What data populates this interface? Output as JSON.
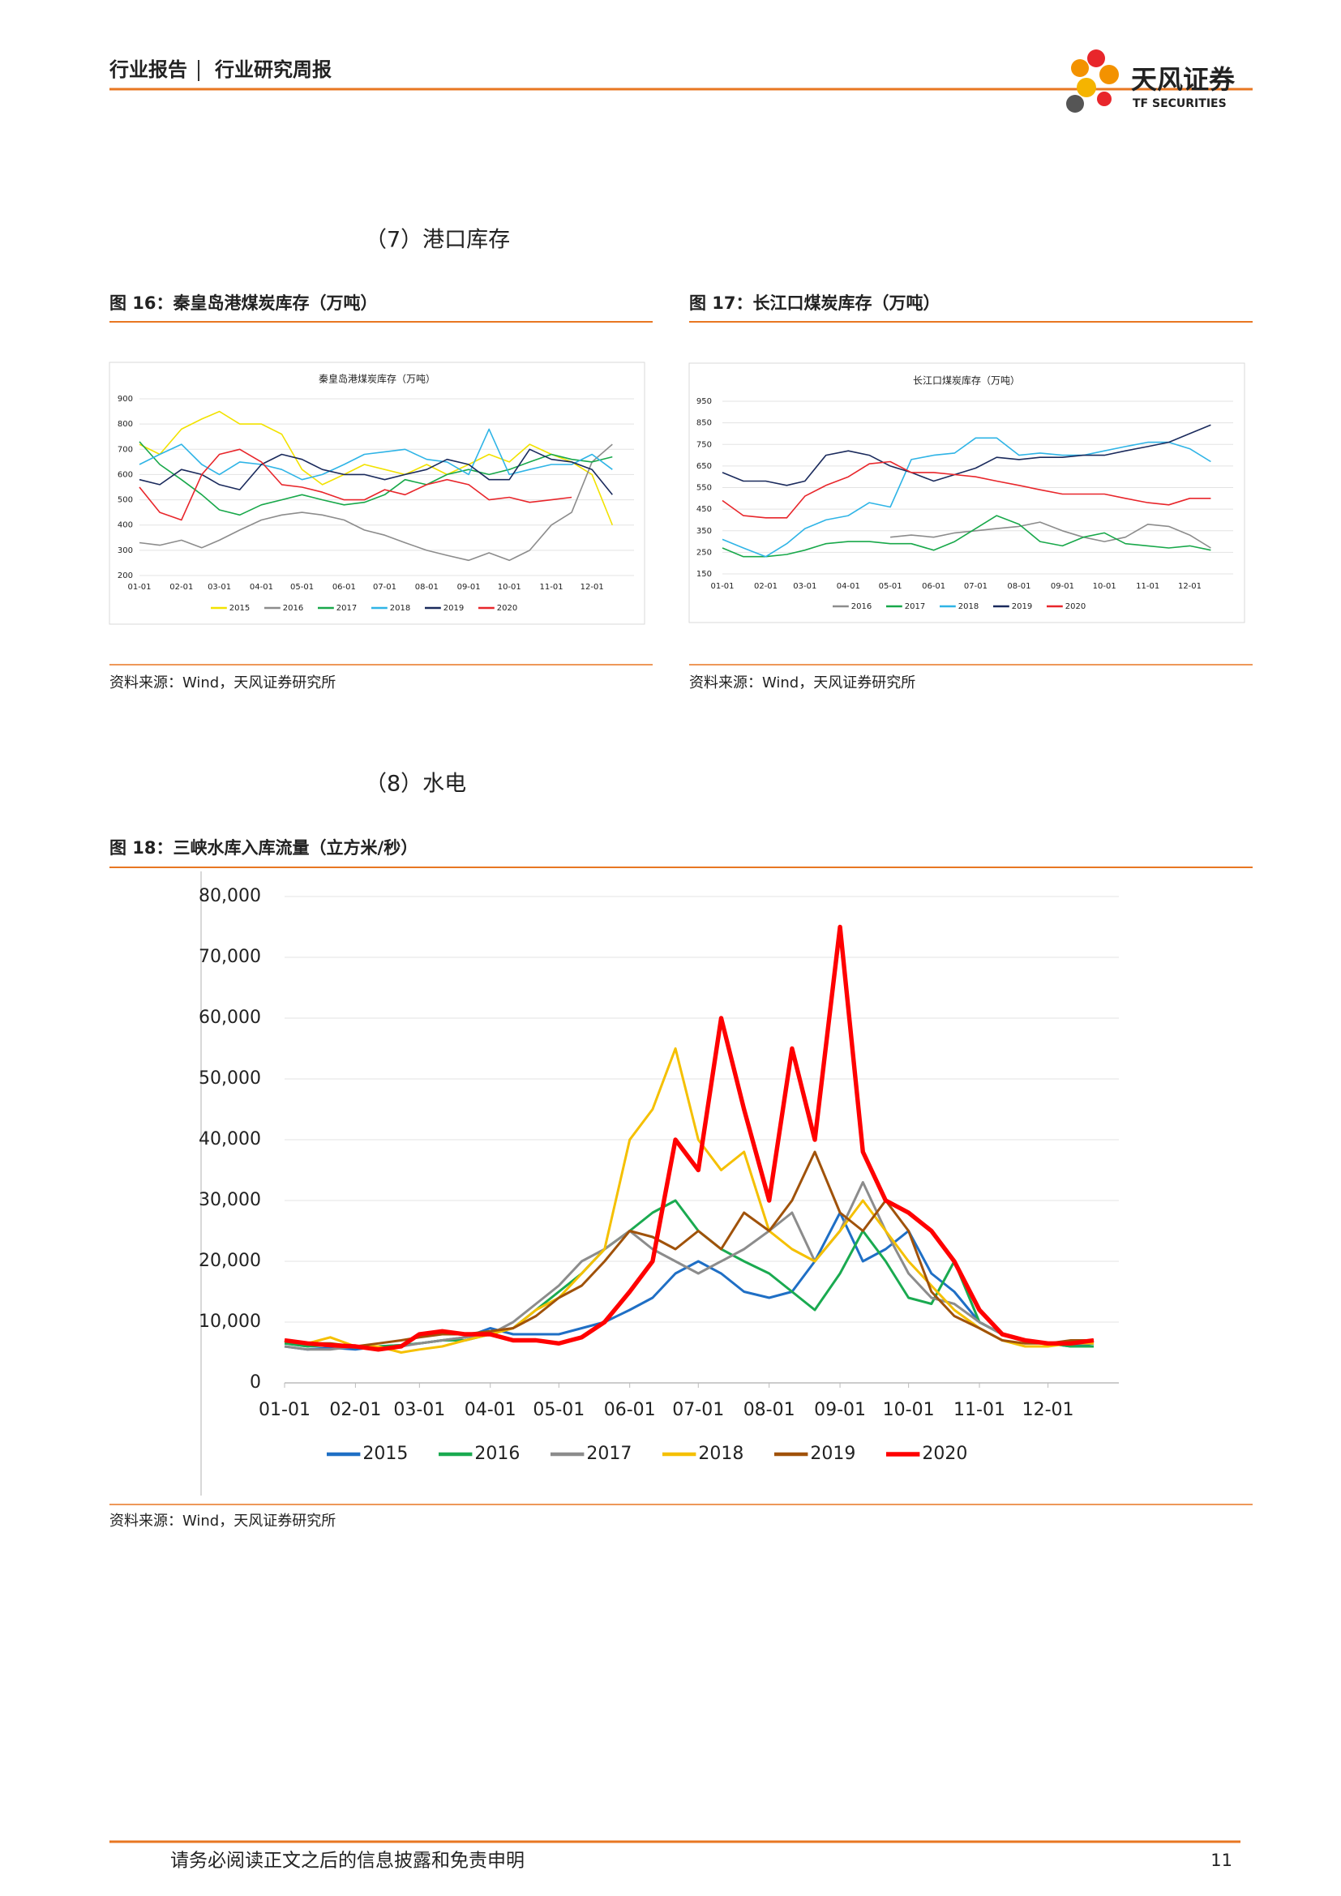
{
  "header": {
    "title_left": "行业报告",
    "title_right": "行业研究周报",
    "logo_cn": "天风证券",
    "logo_en": "TF SECURITIES"
  },
  "sections": [
    "（7）港口库存",
    "（8）水电"
  ],
  "figures": [
    {
      "caption": "图 16：秦皇岛港煤炭库存（万吨）",
      "source": "资料来源：Wind，天风证券研究所"
    },
    {
      "caption": "图 17：长江口煤炭库存（万吨）",
      "source": "资料来源：Wind，天风证券研究所"
    },
    {
      "caption": "图 18：三峡水库入库流量（立方米/秒）",
      "source": "资料来源：Wind，天风证券研究所"
    }
  ],
  "footer": {
    "disclaimer": "请务必阅读正文之后的信息披露和免责申明",
    "page": "11"
  },
  "chart_data": [
    {
      "type": "line",
      "title": "秦皇岛港煤炭库存（万吨）",
      "grid": true,
      "x": [
        "01-01",
        "01-16",
        "02-01",
        "02-16",
        "03-01",
        "03-16",
        "04-01",
        "04-16",
        "05-01",
        "05-16",
        "06-01",
        "06-16",
        "07-01",
        "07-16",
        "08-01",
        "08-16",
        "09-01",
        "09-16",
        "10-01",
        "10-16",
        "11-01",
        "11-16",
        "12-01",
        "12-16"
      ],
      "xticks": [
        "01-01",
        "02-01",
        "03-01",
        "04-01",
        "05-01",
        "06-01",
        "07-01",
        "08-01",
        "09-01",
        "10-01",
        "11-01",
        "12-01"
      ],
      "ylim": [
        200,
        900
      ],
      "yticks": [
        900,
        800,
        700,
        600,
        500,
        400,
        300,
        200
      ],
      "series": [
        {
          "name": "2015",
          "color": "#f2e200",
          "values": [
            720,
            680,
            780,
            820,
            850,
            800,
            800,
            760,
            620,
            560,
            600,
            640,
            620,
            600,
            640,
            600,
            640,
            680,
            650,
            720,
            680,
            650,
            600,
            400
          ]
        },
        {
          "name": "2016",
          "color": "#8c8c8c",
          "values": [
            330,
            320,
            340,
            310,
            340,
            380,
            420,
            440,
            450,
            440,
            420,
            380,
            360,
            330,
            300,
            280,
            260,
            290,
            260,
            300,
            400,
            450,
            650,
            720
          ]
        },
        {
          "name": "2017",
          "color": "#18a84a",
          "values": [
            730,
            640,
            580,
            520,
            460,
            440,
            480,
            500,
            520,
            500,
            480,
            490,
            520,
            580,
            560,
            600,
            620,
            600,
            620,
            650,
            680,
            660,
            650,
            670
          ]
        },
        {
          "name": "2018",
          "color": "#2fb4e6",
          "values": [
            640,
            680,
            720,
            640,
            600,
            650,
            640,
            620,
            580,
            600,
            640,
            680,
            690,
            700,
            660,
            650,
            600,
            780,
            600,
            620,
            640,
            640,
            680,
            620
          ]
        },
        {
          "name": "2019",
          "color": "#1a2a5c",
          "values": [
            580,
            560,
            620,
            600,
            560,
            540,
            640,
            680,
            660,
            620,
            600,
            600,
            580,
            600,
            620,
            660,
            640,
            580,
            580,
            700,
            660,
            650,
            620,
            520
          ]
        },
        {
          "name": "2020",
          "color": "#e8262b",
          "values": [
            550,
            450,
            420,
            600,
            680,
            700,
            650,
            560,
            550,
            530,
            500,
            500,
            540,
            520,
            560,
            580,
            560,
            500,
            510,
            490,
            500,
            510,
            null,
            null
          ]
        }
      ]
    },
    {
      "type": "line",
      "title": "长江口煤炭库存（万吨）",
      "grid": true,
      "x": [
        "01-01",
        "01-16",
        "02-01",
        "02-16",
        "03-01",
        "03-16",
        "04-01",
        "04-16",
        "05-01",
        "05-16",
        "06-01",
        "06-16",
        "07-01",
        "07-16",
        "08-01",
        "08-16",
        "09-01",
        "09-16",
        "10-01",
        "10-16",
        "11-01",
        "11-16",
        "12-01",
        "12-16"
      ],
      "xticks": [
        "01-01",
        "02-01",
        "03-01",
        "04-01",
        "05-01",
        "06-01",
        "07-01",
        "08-01",
        "09-01",
        "10-01",
        "11-01",
        "12-01"
      ],
      "ylim": [
        150,
        950
      ],
      "yticks": [
        950,
        850,
        750,
        650,
        550,
        450,
        350,
        250,
        150
      ],
      "series": [
        {
          "name": "2016",
          "color": "#8c8c8c",
          "values": [
            null,
            null,
            null,
            null,
            null,
            null,
            null,
            null,
            320,
            330,
            320,
            340,
            350,
            360,
            370,
            390,
            350,
            320,
            300,
            320,
            380,
            370,
            330,
            270
          ]
        },
        {
          "name": "2017",
          "color": "#18a84a",
          "values": [
            270,
            230,
            230,
            240,
            260,
            290,
            300,
            300,
            290,
            290,
            260,
            300,
            360,
            420,
            380,
            300,
            280,
            320,
            340,
            290,
            280,
            270,
            280,
            260
          ]
        },
        {
          "name": "2018",
          "color": "#2fb4e6",
          "values": [
            310,
            270,
            230,
            290,
            360,
            400,
            420,
            480,
            460,
            680,
            700,
            710,
            780,
            780,
            700,
            710,
            700,
            700,
            720,
            740,
            760,
            760,
            730,
            670
          ]
        },
        {
          "name": "2019",
          "color": "#1a2a5c",
          "values": [
            620,
            580,
            580,
            560,
            580,
            700,
            720,
            700,
            650,
            620,
            580,
            610,
            640,
            690,
            680,
            690,
            690,
            700,
            700,
            720,
            740,
            760,
            800,
            840
          ]
        },
        {
          "name": "2020",
          "color": "#e8262b",
          "values": [
            490,
            420,
            410,
            410,
            510,
            560,
            600,
            660,
            670,
            620,
            620,
            610,
            600,
            580,
            560,
            540,
            520,
            520,
            520,
            500,
            480,
            470,
            500,
            500
          ]
        }
      ]
    },
    {
      "type": "line",
      "grid": true,
      "x": [
        "01-01",
        "01-11",
        "01-21",
        "02-01",
        "02-11",
        "02-21",
        "03-01",
        "03-11",
        "03-21",
        "04-01",
        "04-11",
        "04-21",
        "05-01",
        "05-11",
        "05-21",
        "06-01",
        "06-11",
        "06-21",
        "07-01",
        "07-11",
        "07-21",
        "08-01",
        "08-11",
        "08-21",
        "09-01",
        "09-11",
        "09-21",
        "10-01",
        "10-11",
        "10-21",
        "11-01",
        "11-11",
        "11-21",
        "12-01",
        "12-11",
        "12-21"
      ],
      "xticks": [
        "01-01",
        "02-01",
        "03-01",
        "04-01",
        "05-01",
        "06-01",
        "07-01",
        "08-01",
        "09-01",
        "10-01",
        "11-01",
        "12-01"
      ],
      "ylim": [
        0,
        80000
      ],
      "yticks": [
        {
          "value": 80000,
          "label": "80,000"
        },
        {
          "value": 70000,
          "label": "70,000"
        },
        {
          "value": 60000,
          "label": "60,000"
        },
        {
          "value": 50000,
          "label": "50,000"
        },
        {
          "value": 40000,
          "label": "40,000"
        },
        {
          "value": 30000,
          "label": "30,000"
        },
        {
          "value": 20000,
          "label": "20,000"
        },
        {
          "value": 10000,
          "label": "10,000"
        },
        0
      ],
      "series": [
        {
          "name": "2015",
          "color": "#1f6fc5",
          "values": [
            6000,
            5500,
            5800,
            5500,
            6000,
            6200,
            6500,
            7000,
            7500,
            9000,
            8000,
            8000,
            8000,
            9000,
            10000,
            12000,
            14000,
            18000,
            20000,
            18000,
            15000,
            14000,
            15000,
            20000,
            28000,
            20000,
            22000,
            25000,
            18000,
            15000,
            10000,
            8000,
            7000,
            6500,
            6000,
            6500
          ]
        },
        {
          "name": "2016",
          "color": "#1aaa50",
          "values": [
            6500,
            6000,
            6200,
            5800,
            6000,
            6200,
            6500,
            7000,
            7000,
            8000,
            9000,
            12000,
            15000,
            18000,
            22000,
            25000,
            28000,
            30000,
            25000,
            22000,
            20000,
            18000,
            15000,
            12000,
            18000,
            25000,
            20000,
            14000,
            13000,
            20000,
            10000,
            8000,
            7000,
            6500,
            6000,
            6000
          ]
        },
        {
          "name": "2017",
          "color": "#8c8c8c",
          "values": [
            6000,
            5500,
            5500,
            6000,
            5500,
            6000,
            6500,
            7000,
            7500,
            8000,
            10000,
            13000,
            16000,
            20000,
            22000,
            25000,
            22000,
            20000,
            18000,
            20000,
            22000,
            25000,
            28000,
            20000,
            25000,
            33000,
            25000,
            18000,
            14000,
            13000,
            10000,
            8000,
            7000,
            6500,
            6500,
            7000
          ]
        },
        {
          "name": "2018",
          "color": "#f5c000",
          "values": [
            7000,
            6500,
            7500,
            6000,
            6000,
            5000,
            5500,
            6000,
            7000,
            8000,
            9000,
            12000,
            14000,
            18000,
            22000,
            40000,
            45000,
            55000,
            40000,
            35000,
            38000,
            25000,
            22000,
            20000,
            25000,
            30000,
            25000,
            20000,
            16000,
            12000,
            9000,
            7000,
            6000,
            6000,
            6500,
            6500
          ]
        },
        {
          "name": "2019",
          "color": "#a0520a",
          "values": [
            7000,
            6500,
            6500,
            6000,
            6500,
            7000,
            7500,
            8000,
            8000,
            8500,
            9000,
            11000,
            14000,
            16000,
            20000,
            25000,
            24000,
            22000,
            25000,
            22000,
            28000,
            25000,
            30000,
            38000,
            28000,
            25000,
            30000,
            25000,
            15000,
            11000,
            9000,
            7000,
            6500,
            6500,
            7000,
            7000
          ]
        },
        {
          "name": "2020",
          "color": "#ff0000",
          "values": [
            7000,
            6500,
            6200,
            6000,
            5500,
            6000,
            8000,
            8500,
            8000,
            8000,
            7000,
            7000,
            6500,
            7500,
            10000,
            15000,
            20000,
            40000,
            35000,
            60000,
            45000,
            30000,
            55000,
            40000,
            75000,
            38000,
            30000,
            28000,
            25000,
            20000,
            12000,
            8000,
            7000,
            6500,
            6500,
            7000
          ]
        }
      ]
    }
  ]
}
